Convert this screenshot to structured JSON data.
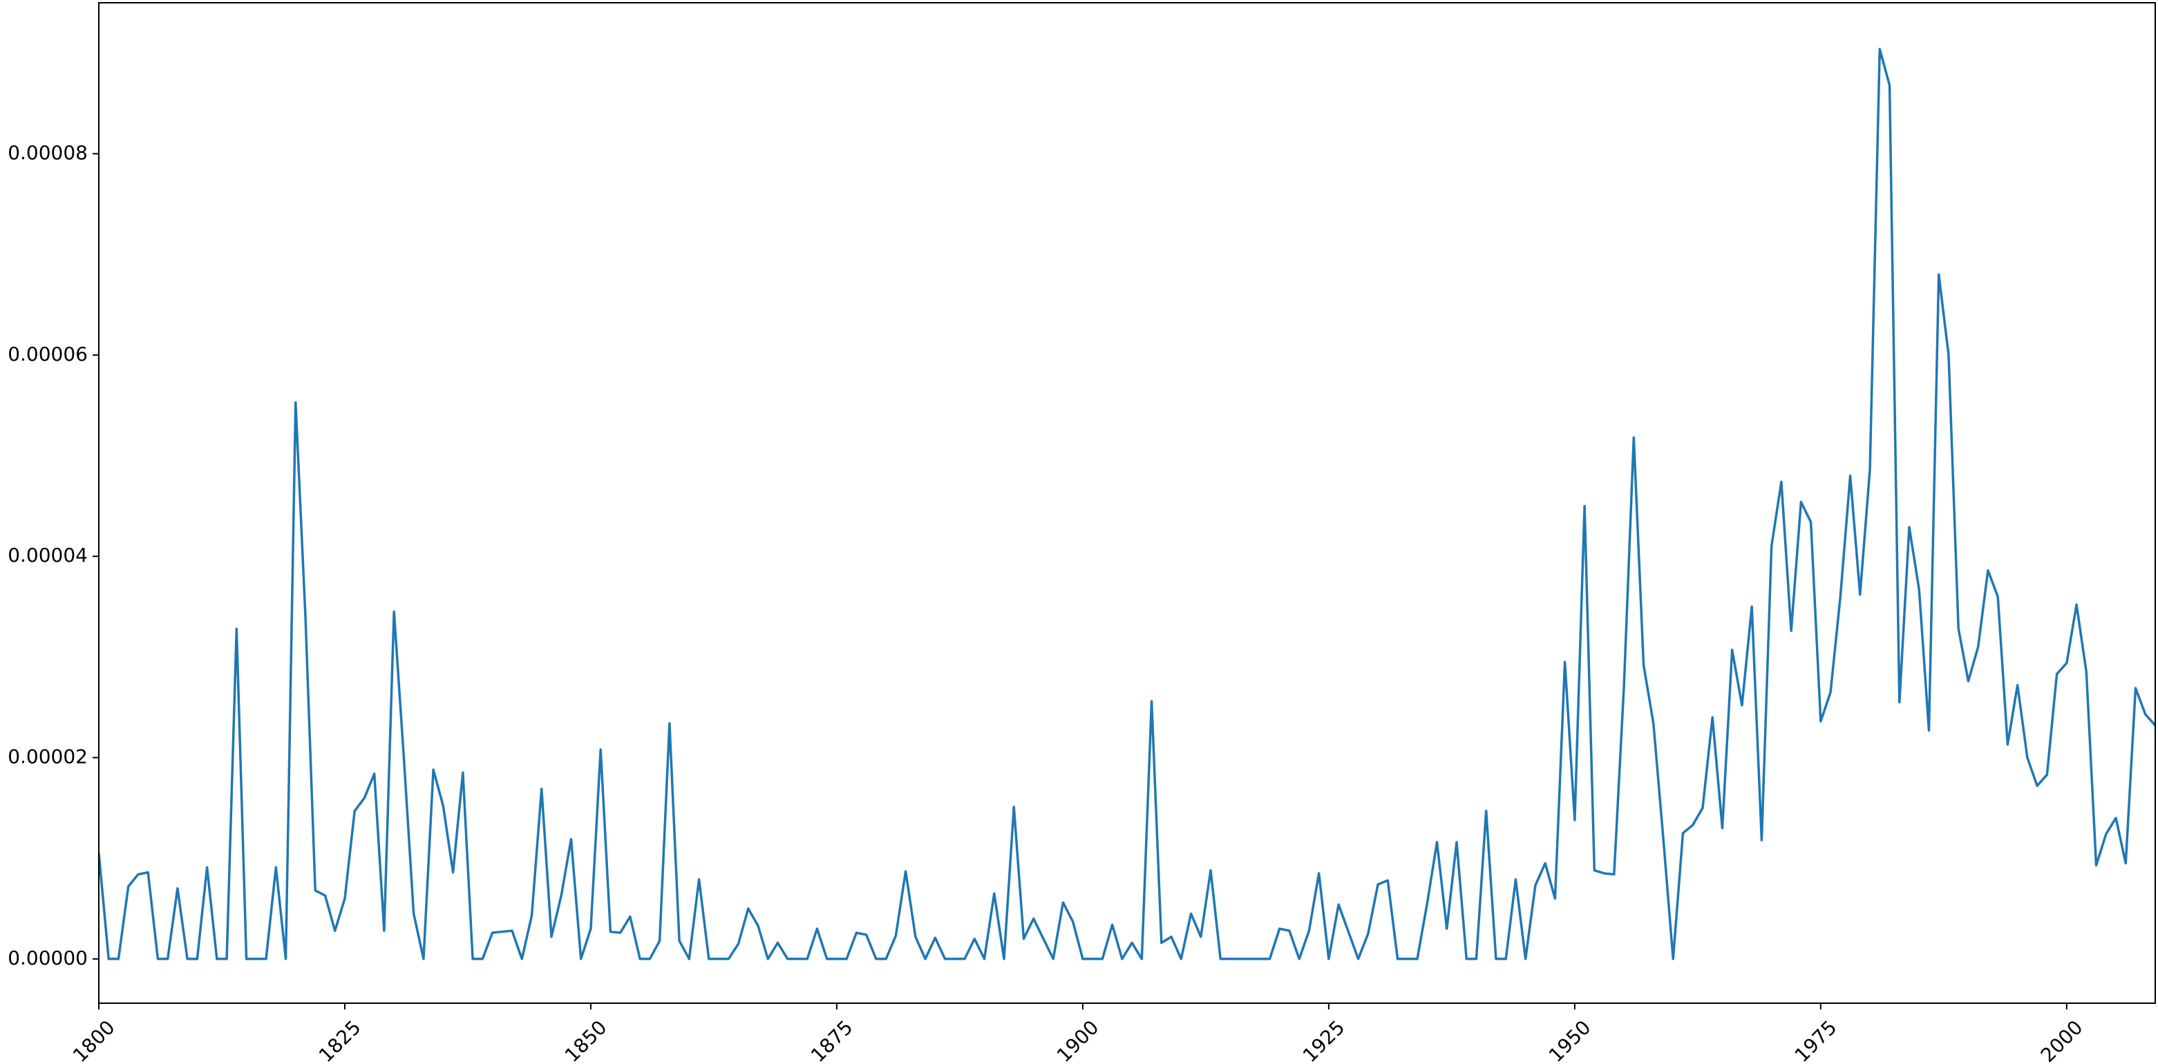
{
  "chart_data": {
    "type": "line",
    "x": [
      1800,
      1801,
      1802,
      1803,
      1804,
      1805,
      1806,
      1807,
      1808,
      1809,
      1810,
      1811,
      1812,
      1813,
      1814,
      1815,
      1816,
      1817,
      1818,
      1819,
      1820,
      1821,
      1822,
      1823,
      1824,
      1825,
      1826,
      1827,
      1828,
      1829,
      1830,
      1831,
      1832,
      1833,
      1834,
      1835,
      1836,
      1837,
      1838,
      1839,
      1840,
      1841,
      1842,
      1843,
      1844,
      1845,
      1846,
      1847,
      1848,
      1849,
      1850,
      1851,
      1852,
      1853,
      1854,
      1855,
      1856,
      1857,
      1858,
      1859,
      1860,
      1861,
      1862,
      1863,
      1864,
      1865,
      1866,
      1867,
      1868,
      1869,
      1870,
      1871,
      1872,
      1873,
      1874,
      1875,
      1876,
      1877,
      1878,
      1879,
      1880,
      1881,
      1882,
      1883,
      1884,
      1885,
      1886,
      1887,
      1888,
      1889,
      1890,
      1891,
      1892,
      1893,
      1894,
      1895,
      1896,
      1897,
      1898,
      1899,
      1900,
      1901,
      1902,
      1903,
      1904,
      1905,
      1906,
      1907,
      1908,
      1909,
      1910,
      1911,
      1912,
      1913,
      1914,
      1915,
      1916,
      1917,
      1918,
      1919,
      1920,
      1921,
      1922,
      1923,
      1924,
      1925,
      1926,
      1927,
      1928,
      1929,
      1930,
      1931,
      1932,
      1933,
      1934,
      1935,
      1936,
      1937,
      1938,
      1939,
      1940,
      1941,
      1942,
      1943,
      1944,
      1945,
      1946,
      1947,
      1948,
      1949,
      1950,
      1951,
      1952,
      1953,
      1954,
      1955,
      1956,
      1957,
      1958,
      1959,
      1960,
      1961,
      1962,
      1963,
      1964,
      1965,
      1966,
      1967,
      1968,
      1969,
      1970,
      1971,
      1972,
      1973,
      1974,
      1975,
      1976,
      1977,
      1978,
      1979,
      1980,
      1981,
      1982,
      1983,
      1984,
      1985,
      1986,
      1987,
      1988,
      1989,
      1990,
      1991,
      1992,
      1993,
      1994,
      1995,
      1996,
      1997,
      1998,
      1999,
      2000,
      2001,
      2002,
      2003,
      2004,
      2005,
      2006,
      2007,
      2008,
      2009
    ],
    "series": [
      {
        "color": "#1f77b4",
        "values": [
          1.05e-05,
          0,
          0,
          7.2e-06,
          8.4e-06,
          8.6e-06,
          0,
          0,
          7e-06,
          0,
          0,
          9.1e-06,
          0,
          0,
          3.28e-05,
          0,
          0,
          0,
          9.1e-06,
          0,
          5.53e-05,
          3.4e-05,
          6.8e-06,
          6.3e-06,
          2.8e-06,
          6e-06,
          1.47e-05,
          1.6e-05,
          1.84e-05,
          2.8e-06,
          3.45e-05,
          2e-05,
          4.5e-06,
          0,
          1.88e-05,
          1.52e-05,
          8.6e-06,
          1.85e-05,
          0,
          0,
          2.6e-06,
          2.7e-06,
          2.8e-06,
          0,
          4.3e-06,
          1.69e-05,
          2.2e-06,
          6.3e-06,
          1.19e-05,
          0,
          3e-06,
          2.08e-05,
          2.7e-06,
          2.6e-06,
          4.2e-06,
          0,
          0,
          1.8e-06,
          2.34e-05,
          1.8e-06,
          0,
          7.9e-06,
          0,
          0,
          0,
          1.5e-06,
          5e-06,
          3.3e-06,
          0,
          1.6e-06,
          0,
          0,
          0,
          3e-06,
          0,
          0,
          0,
          2.6e-06,
          2.4e-06,
          0,
          0,
          2.3e-06,
          8.7e-06,
          2.2e-06,
          0,
          2.1e-06,
          0,
          0,
          0,
          2e-06,
          0,
          6.5e-06,
          0,
          1.51e-05,
          2e-06,
          4e-06,
          2e-06,
          0,
          5.6e-06,
          3.7e-06,
          0,
          0,
          0,
          3.4e-06,
          0,
          1.6e-06,
          0,
          2.56e-05,
          1.6e-06,
          2.2e-06,
          0,
          4.5e-06,
          2.2e-06,
          8.8e-06,
          0,
          0,
          0,
          0,
          0,
          0,
          3e-06,
          2.8e-06,
          0,
          2.8e-06,
          8.5e-06,
          0,
          5.4e-06,
          2.7e-06,
          0,
          2.5e-06,
          7.4e-06,
          7.8e-06,
          0,
          0,
          0,
          5.5e-06,
          1.16e-05,
          3e-06,
          1.16e-05,
          0,
          0,
          1.47e-05,
          0,
          0,
          7.9e-06,
          0,
          7.3e-06,
          9.5e-06,
          6e-06,
          2.95e-05,
          1.38e-05,
          4.5e-05,
          8.8e-06,
          8.5e-06,
          8.4e-06,
          2.7e-05,
          5.18e-05,
          2.92e-05,
          2.34e-05,
          1.2e-05,
          0,
          1.25e-05,
          1.33e-05,
          1.5e-05,
          2.4e-05,
          1.3e-05,
          3.07e-05,
          2.52e-05,
          3.5e-05,
          1.18e-05,
          4.1e-05,
          4.74e-05,
          3.26e-05,
          4.54e-05,
          4.34e-05,
          2.36e-05,
          2.65e-05,
          3.6e-05,
          4.8e-05,
          3.62e-05,
          4.86e-05,
          9.04e-05,
          8.68e-05,
          2.55e-05,
          4.29e-05,
          3.67e-05,
          2.27e-05,
          6.8e-05,
          6e-05,
          3.28e-05,
          2.76e-05,
          3.1e-05,
          3.86e-05,
          3.6e-05,
          2.13e-05,
          2.72e-05,
          2e-05,
          1.72e-05,
          1.83e-05,
          2.83e-05,
          2.94e-05,
          3.52e-05,
          2.85e-05,
          9.3e-06,
          1.24e-05,
          1.4e-05,
          9.5e-06,
          2.69e-05,
          2.43e-05,
          2.32e-05
        ]
      }
    ],
    "xlim": [
      1800,
      2009
    ],
    "xticks": [
      1800,
      1825,
      1850,
      1875,
      1900,
      1925,
      1950,
      1975,
      2000
    ],
    "ylim": [
      -4.4e-06,
      9.5e-05
    ],
    "yticks": [
      {
        "value": 0,
        "label": "0.00000"
      },
      2e-05,
      4e-05,
      6e-05,
      8e-05
    ],
    "grid": false
  }
}
